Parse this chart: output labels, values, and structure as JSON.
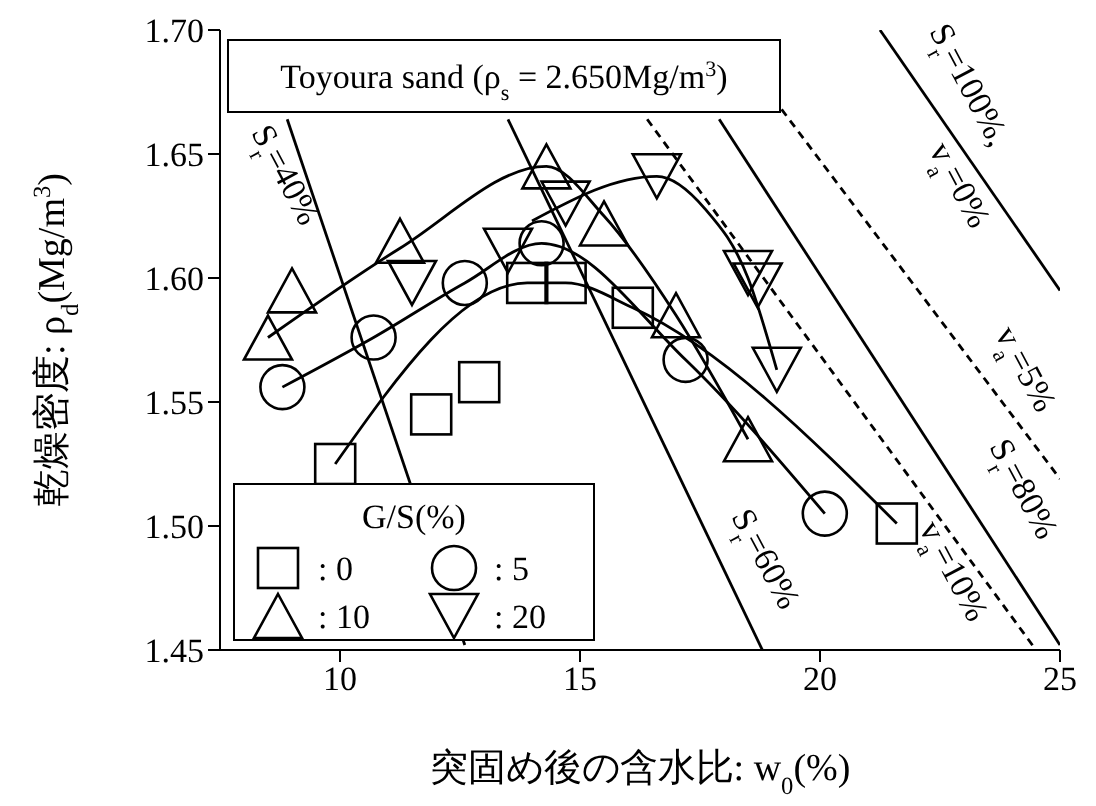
{
  "chart_data": {
    "type": "scatter",
    "xlabel": "突固め後の含水比: w$_{0}$(%)",
    "ylabel": "乾燥密度: ρ$_{d}$(Mg/m$^{3}$)",
    "legend_title": "G/S(%)",
    "legend": "bottom left",
    "xlim": [
      7.5,
      25
    ],
    "ylim": [
      1.45,
      1.7
    ],
    "xticks": [
      10,
      15,
      20,
      25
    ],
    "yticks": [
      1.45,
      {
        "value": 1.5,
        "label": "1.50"
      },
      1.55,
      {
        "value": 1.6,
        "label": "1.60"
      },
      1.65,
      {
        "value": 1.7,
        "label": "1.70"
      }
    ],
    "grid": false,
    "annotations": [
      "Toyoura sand (ρ$_{s}$ = 2.650Mg/m$^{3}$)",
      "S$_{r}$=40%",
      "S$_{r}$=60%",
      "S$_{r}$=80%",
      "S$_{r}$=100%,",
      "v$_{a}$=0%",
      "v$_{a}$=5%",
      "v$_{a}$=10%"
    ],
    "series": [
      {
        "type": "line",
        "line_style": "solid",
        "color": "#000000",
        "x": [
          8.9,
          12.6
        ],
        "values": [
          1.664,
          1.452
        ]
      },
      {
        "type": "line",
        "line_style": "solid",
        "color": "#000000",
        "x": [
          13.5,
          18.8
        ],
        "values": [
          1.664,
          1.45
        ]
      },
      {
        "type": "line",
        "line_style": "solid",
        "color": "#000000",
        "x": [
          17.9,
          25
        ],
        "values": [
          1.664,
          1.452
        ]
      },
      {
        "type": "line",
        "line_style": "solid",
        "color": "#000000",
        "x": [
          21.25,
          25
        ],
        "values": [
          1.7,
          1.595
        ]
      },
      {
        "type": "line",
        "line_style": "dashed",
        "color": "#000000",
        "x": [
          19.2,
          25
        ],
        "values": [
          1.668,
          1.519
        ]
      },
      {
        "type": "line",
        "line_style": "dashed",
        "color": "#000000",
        "x": [
          16.4,
          24.5
        ],
        "values": [
          1.664,
          1.45
        ]
      },
      {
        "type": "line",
        "line_style": "solid",
        "color": "#000000",
        "x": [
          9.9,
          13.9,
          14.7,
          16.1,
          21.6
        ],
        "values": [
          1.525,
          1.598,
          1.598,
          1.588,
          1.501
        ]
      },
      {
        "type": "line",
        "line_style": "solid",
        "color": "#000000",
        "x": [
          8.8,
          10.7,
          12.6,
          14.2,
          17.2,
          20.1
        ],
        "values": [
          1.556,
          1.576,
          1.598,
          1.614,
          1.567,
          1.505
        ]
      },
      {
        "type": "line",
        "line_style": "solid",
        "color": "#000000",
        "x": [
          8.5,
          11.25,
          14.3,
          15.5,
          17.0,
          18.5
        ],
        "values": [
          1.576,
          1.612,
          1.645,
          1.625,
          1.585,
          1.535
        ]
      },
      {
        "type": "line",
        "line_style": "solid",
        "color": "#000000",
        "x": [
          14.0,
          16.6,
          17.6,
          18.5,
          19.1
        ],
        "values": [
          1.623,
          1.641,
          1.628,
          1.6,
          1.563
        ]
      },
      {
        "name": ": 0",
        "marker": "square",
        "color": "#000000",
        "x": [
          9.9,
          11.9,
          12.9,
          13.9,
          14.7,
          16.1,
          21.6
        ],
        "values": [
          1.525,
          1.545,
          1.558,
          1.598,
          1.598,
          1.588,
          1.501
        ]
      },
      {
        "name": ": 5",
        "marker": "circle",
        "color": "#000000",
        "x": [
          8.8,
          10.7,
          12.6,
          14.2,
          17.2,
          20.1
        ],
        "values": [
          1.556,
          1.576,
          1.598,
          1.614,
          1.567,
          1.505
        ]
      },
      {
        "name": ": 10",
        "marker": "triangle",
        "color": "#000000",
        "x": [
          8.5,
          9.0,
          11.25,
          14.3,
          15.5,
          17.0,
          18.5
        ],
        "values": [
          1.576,
          1.595,
          1.615,
          1.645,
          1.622,
          1.585,
          1.535
        ]
      },
      {
        "name": ": 20",
        "marker": "triangle-down",
        "color": "#000000",
        "x": [
          11.5,
          13.5,
          14.7,
          16.6,
          18.5,
          18.7,
          19.1
        ],
        "values": [
          1.598,
          1.611,
          1.63,
          1.641,
          1.602,
          1.597,
          1.563
        ]
      }
    ]
  }
}
